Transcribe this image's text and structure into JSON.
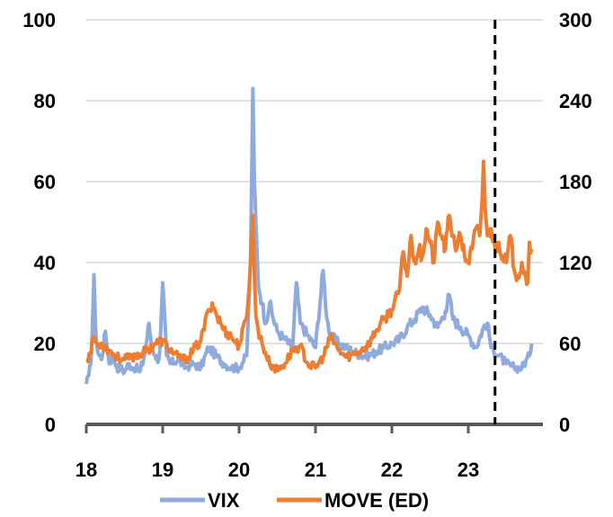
{
  "chart_data": {
    "type": "line",
    "title": "",
    "xlabel": "",
    "ylabel": "",
    "x_ticks": [
      "18",
      "19",
      "20",
      "21",
      "22",
      "23"
    ],
    "x_range": [
      18,
      23.85
    ],
    "y_left_ticks": [
      "0",
      "20",
      "40",
      "60",
      "80",
      "100"
    ],
    "y_right_ticks": [
      "0",
      "60",
      "120",
      "180",
      "240",
      "300"
    ],
    "ylim_left": [
      0,
      100
    ],
    "ylim_right": [
      0,
      300
    ],
    "grid": "horizontal",
    "legend_position": "bottom",
    "vertical_marker": {
      "x": 23.35,
      "style": "dashed"
    },
    "series": [
      {
        "name": "VIX",
        "axis": "left",
        "color": "#8faadc",
        "x": [
          18.0,
          18.03,
          18.06,
          18.09,
          18.1,
          18.12,
          18.15,
          18.2,
          18.25,
          18.3,
          18.35,
          18.4,
          18.45,
          18.5,
          18.55,
          18.6,
          18.65,
          18.7,
          18.75,
          18.8,
          18.82,
          18.85,
          18.9,
          18.95,
          18.97,
          19.0,
          19.05,
          19.1,
          19.2,
          19.3,
          19.4,
          19.5,
          19.6,
          19.7,
          19.8,
          19.9,
          20.0,
          20.1,
          20.15,
          20.18,
          20.2,
          20.22,
          20.25,
          20.3,
          20.35,
          20.4,
          20.45,
          20.5,
          20.6,
          20.7,
          20.75,
          20.8,
          20.9,
          21.0,
          21.1,
          21.15,
          21.2,
          21.3,
          21.4,
          21.5,
          21.6,
          21.7,
          21.8,
          21.9,
          22.0,
          22.1,
          22.2,
          22.3,
          22.4,
          22.5,
          22.6,
          22.7,
          22.75,
          22.8,
          22.9,
          23.0,
          23.1,
          23.2,
          23.25,
          23.3,
          23.4,
          23.5,
          23.6,
          23.7,
          23.8,
          23.83
        ],
        "values": [
          10,
          12,
          15,
          30,
          37,
          24,
          18,
          16,
          23,
          15,
          17,
          14,
          14,
          13,
          15,
          14,
          14,
          13,
          16,
          22,
          25,
          20,
          17,
          16,
          21,
          35,
          17,
          15,
          16,
          14,
          15,
          14,
          19,
          17,
          15,
          14,
          14,
          17,
          40,
          83,
          60,
          50,
          35,
          30,
          25,
          30,
          26,
          23,
          21,
          19,
          35,
          25,
          22,
          19,
          38,
          26,
          22,
          20,
          19,
          18,
          17,
          17,
          18,
          19,
          20,
          21,
          24,
          26,
          29,
          27,
          24,
          28,
          32,
          26,
          24,
          22,
          19,
          24,
          25,
          19,
          17,
          15,
          14,
          14,
          17,
          20
        ]
      },
      {
        "name": "MOVE (ED)",
        "axis": "right",
        "color": "#ed7d31",
        "x": [
          18.0,
          18.05,
          18.1,
          18.15,
          18.2,
          18.3,
          18.4,
          18.5,
          18.6,
          18.7,
          18.8,
          18.9,
          19.0,
          19.1,
          19.2,
          19.3,
          19.4,
          19.5,
          19.6,
          19.65,
          19.7,
          19.8,
          19.9,
          20.0,
          20.1,
          20.15,
          20.18,
          20.2,
          20.22,
          20.25,
          20.3,
          20.4,
          20.5,
          20.6,
          20.7,
          20.8,
          20.9,
          21.0,
          21.1,
          21.2,
          21.3,
          21.4,
          21.5,
          21.6,
          21.7,
          21.8,
          21.9,
          22.0,
          22.1,
          22.15,
          22.2,
          22.25,
          22.3,
          22.35,
          22.4,
          22.45,
          22.5,
          22.55,
          22.6,
          22.65,
          22.7,
          22.75,
          22.8,
          22.85,
          22.9,
          22.95,
          23.0,
          23.05,
          23.1,
          23.15,
          23.18,
          23.2,
          23.22,
          23.25,
          23.3,
          23.35,
          23.4,
          23.45,
          23.5,
          23.55,
          23.6,
          23.65,
          23.7,
          23.75,
          23.78,
          23.8,
          23.83
        ],
        "values": [
          48,
          52,
          65,
          58,
          60,
          55,
          50,
          48,
          50,
          52,
          55,
          60,
          62,
          55,
          50,
          48,
          55,
          62,
          85,
          90,
          82,
          70,
          65,
          58,
          80,
          120,
          155,
          110,
          80,
          70,
          60,
          45,
          40,
          45,
          55,
          58,
          45,
          42,
          50,
          65,
          55,
          50,
          52,
          55,
          60,
          70,
          78,
          85,
          100,
          128,
          110,
          140,
          120,
          130,
          125,
          145,
          135,
          120,
          150,
          140,
          130,
          155,
          140,
          130,
          140,
          125,
          120,
          130,
          145,
          140,
          165,
          195,
          160,
          140,
          145,
          130,
          135,
          125,
          120,
          140,
          115,
          110,
          120,
          110,
          105,
          135,
          130
        ]
      }
    ]
  }
}
